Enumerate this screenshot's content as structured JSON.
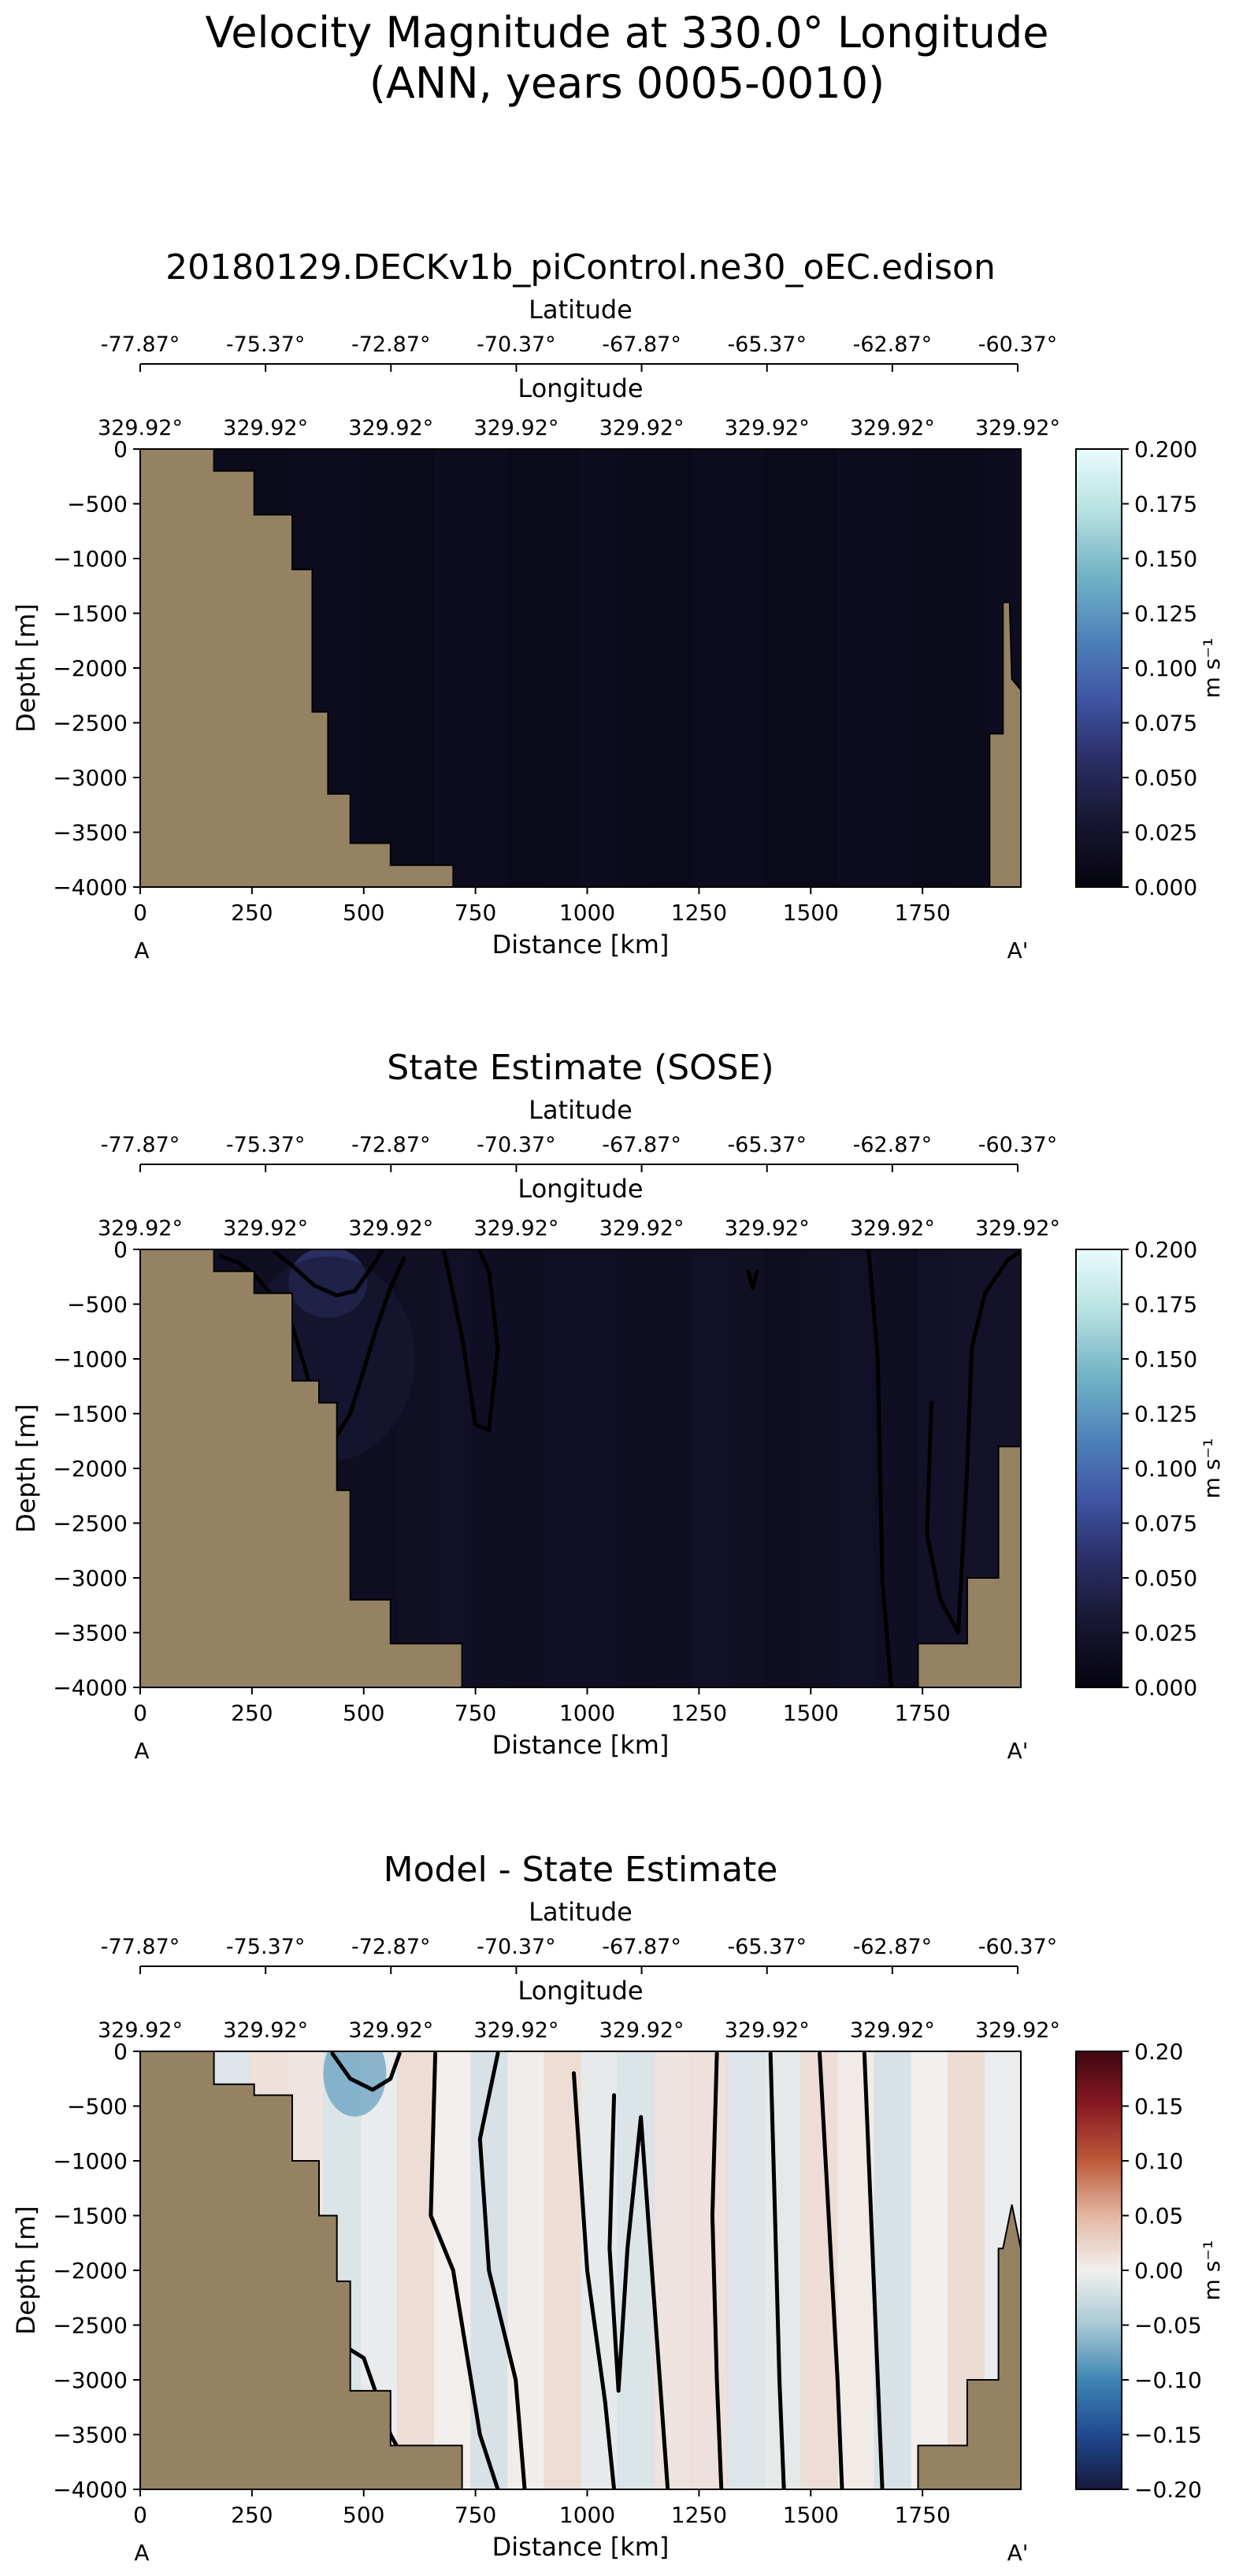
{
  "figure": {
    "title_line1": "Velocity Magnitude at 330.0° Longitude",
    "title_line2": "(ANN, years 0005-0010)"
  },
  "colors": {
    "land": "#948263",
    "magnitude_cmap": [
      "#05040f",
      "#171630",
      "#2a2d63",
      "#3f55a4",
      "#4d84ba",
      "#73b4c6",
      "#b6e0e0",
      "#eafcfd"
    ],
    "diff_cmap": [
      "#17193e",
      "#1f4a91",
      "#3e86b4",
      "#a7c9d4",
      "#f2f0ef",
      "#e3b7a2",
      "#bd5a3a",
      "#8a1a23",
      "#3f0611"
    ]
  },
  "chart_data": [
    {
      "type": "heatmap",
      "title": "20180129.DECKv1b_piControl.ne30_oEC.edison",
      "xlabel": "Distance [km]",
      "ylabel": "Depth [m]",
      "xlim": [
        0,
        1970
      ],
      "ylim": [
        -4000,
        0
      ],
      "x_ticks": [
        0,
        250,
        500,
        750,
        1000,
        1250,
        1500,
        1750
      ],
      "y_ticks": [
        0,
        -500,
        -1000,
        -1500,
        -2000,
        -2500,
        -3000,
        -3500,
        -4000
      ],
      "latitude_label": "Latitude",
      "latitude_ticks": [
        "-77.87°",
        "-75.37°",
        "-72.87°",
        "-70.37°",
        "-67.87°",
        "-65.37°",
        "-62.87°",
        "-60.37°"
      ],
      "longitude_label": "Longitude",
      "longitude_ticks": [
        "329.92°",
        "329.92°",
        "329.92°",
        "329.92°",
        "329.92°",
        "329.92°",
        "329.92°",
        "329.92°"
      ],
      "endpoint_start": "A",
      "endpoint_end": "A'",
      "colorbar": {
        "label": "m s⁻¹",
        "vmin": 0.0,
        "vmax": 0.2,
        "tick_labels": [
          "0.000",
          "0.025",
          "0.050",
          "0.075",
          "0.100",
          "0.125",
          "0.150",
          "0.175",
          "0.200"
        ]
      },
      "ocean_base_value": 0.012,
      "contour_levels": [],
      "contours": [],
      "land_left": [
        [
          0,
          0
        ],
        [
          165,
          0
        ],
        [
          165,
          -200
        ],
        [
          255,
          -200
        ],
        [
          255,
          -600
        ],
        [
          340,
          -600
        ],
        [
          340,
          -1100
        ],
        [
          385,
          -1100
        ],
        [
          385,
          -2400
        ],
        [
          420,
          -2400
        ],
        [
          420,
          -3150
        ],
        [
          470,
          -3150
        ],
        [
          470,
          -3600
        ],
        [
          560,
          -3600
        ],
        [
          560,
          -3800
        ],
        [
          700,
          -3800
        ],
        [
          700,
          -4000
        ],
        [
          0,
          -4000
        ]
      ],
      "land_right": [
        [
          1970,
          -2200
        ],
        [
          1950,
          -2100
        ],
        [
          1945,
          -1400
        ],
        [
          1930,
          -1400
        ],
        [
          1930,
          -2600
        ],
        [
          1900,
          -2600
        ],
        [
          1900,
          -4000
        ],
        [
          1970,
          -4000
        ]
      ]
    },
    {
      "type": "heatmap",
      "title": "State Estimate (SOSE)",
      "xlabel": "Distance [km]",
      "ylabel": "Depth [m]",
      "xlim": [
        0,
        1970
      ],
      "ylim": [
        -4000,
        0
      ],
      "x_ticks": [
        0,
        250,
        500,
        750,
        1000,
        1250,
        1500,
        1750
      ],
      "y_ticks": [
        0,
        -500,
        -1000,
        -1500,
        -2000,
        -2500,
        -3000,
        -3500,
        -4000
      ],
      "latitude_label": "Latitude",
      "latitude_ticks": [
        "-77.87°",
        "-75.37°",
        "-72.87°",
        "-70.37°",
        "-67.87°",
        "-65.37°",
        "-62.87°",
        "-60.37°"
      ],
      "longitude_label": "Longitude",
      "longitude_ticks": [
        "329.92°",
        "329.92°",
        "329.92°",
        "329.92°",
        "329.92°",
        "329.92°",
        "329.92°",
        "329.92°"
      ],
      "endpoint_start": "A",
      "endpoint_end": "A'",
      "colorbar": {
        "label": "m s⁻¹",
        "vmin": 0.0,
        "vmax": 0.2,
        "tick_labels": [
          "0.000",
          "0.025",
          "0.050",
          "0.075",
          "0.100",
          "0.125",
          "0.150",
          "0.175",
          "0.200"
        ]
      },
      "ocean_base_value": 0.018,
      "contour_levels": [
        0.02,
        0.04
      ],
      "contours": [
        [
          [
            180,
            -60
          ],
          [
            220,
            -120
          ],
          [
            260,
            -250
          ],
          [
            300,
            -450
          ],
          [
            340,
            -700
          ],
          [
            370,
            -1100
          ],
          [
            400,
            -1600
          ],
          [
            440,
            -1700
          ],
          [
            470,
            -1500
          ],
          [
            500,
            -1100
          ],
          [
            530,
            -700
          ],
          [
            560,
            -350
          ],
          [
            590,
            -80
          ]
        ],
        [
          [
            300,
            -20
          ],
          [
            340,
            -150
          ],
          [
            390,
            -330
          ],
          [
            440,
            -420
          ],
          [
            480,
            -380
          ],
          [
            520,
            -150
          ],
          [
            540,
            -20
          ]
        ],
        [
          [
            680,
            -20
          ],
          [
            720,
            -800
          ],
          [
            750,
            -1600
          ],
          [
            780,
            -1650
          ],
          [
            800,
            -900
          ],
          [
            780,
            -200
          ],
          [
            760,
            -20
          ]
        ],
        [
          [
            1360,
            -200
          ],
          [
            1370,
            -350
          ],
          [
            1380,
            -200
          ]
        ],
        [
          [
            1630,
            -20
          ],
          [
            1650,
            -1000
          ],
          [
            1660,
            -3000
          ],
          [
            1680,
            -4000
          ]
        ],
        [
          [
            1770,
            -1400
          ],
          [
            1760,
            -2600
          ],
          [
            1790,
            -3200
          ],
          [
            1830,
            -3500
          ],
          [
            1850,
            -2000
          ],
          [
            1860,
            -900
          ],
          [
            1890,
            -400
          ],
          [
            1940,
            -100
          ],
          [
            1968,
            -20
          ]
        ]
      ],
      "land_left": [
        [
          0,
          0
        ],
        [
          165,
          0
        ],
        [
          165,
          -200
        ],
        [
          255,
          -200
        ],
        [
          255,
          -400
        ],
        [
          340,
          -400
        ],
        [
          340,
          -1200
        ],
        [
          400,
          -1200
        ],
        [
          400,
          -1400
        ],
        [
          440,
          -1400
        ],
        [
          440,
          -2200
        ],
        [
          470,
          -2200
        ],
        [
          470,
          -3200
        ],
        [
          560,
          -3200
        ],
        [
          560,
          -3600
        ],
        [
          720,
          -3600
        ],
        [
          720,
          -4000
        ],
        [
          0,
          -4000
        ]
      ],
      "land_right": [
        [
          1970,
          -1800
        ],
        [
          1920,
          -1800
        ],
        [
          1920,
          -3000
        ],
        [
          1850,
          -3000
        ],
        [
          1850,
          -3600
        ],
        [
          1740,
          -3600
        ],
        [
          1740,
          -4000
        ],
        [
          1970,
          -4000
        ]
      ]
    },
    {
      "type": "heatmap",
      "title": "Model - State Estimate",
      "xlabel": "Distance [km]",
      "ylabel": "Depth [m]",
      "xlim": [
        0,
        1970
      ],
      "ylim": [
        -4000,
        0
      ],
      "x_ticks": [
        0,
        250,
        500,
        750,
        1000,
        1250,
        1500,
        1750
      ],
      "y_ticks": [
        0,
        -500,
        -1000,
        -1500,
        -2000,
        -2500,
        -3000,
        -3500,
        -4000
      ],
      "latitude_label": "Latitude",
      "latitude_ticks": [
        "-77.87°",
        "-75.37°",
        "-72.87°",
        "-70.37°",
        "-67.87°",
        "-65.37°",
        "-62.87°",
        "-60.37°"
      ],
      "longitude_label": "Longitude",
      "longitude_ticks": [
        "329.92°",
        "329.92°",
        "329.92°",
        "329.92°",
        "329.92°",
        "329.92°",
        "329.92°",
        "329.92°"
      ],
      "endpoint_start": "A",
      "endpoint_end": "A'",
      "colorbar": {
        "label": "m s⁻¹",
        "vmin": -0.2,
        "vmax": 0.2,
        "tick_labels": [
          "−0.20",
          "−0.15",
          "−0.10",
          "−0.05",
          "0.00",
          "0.05",
          "0.10",
          "0.15",
          "0.20"
        ]
      },
      "ocean_base_value": 0.0,
      "contour_levels": [
        0.0
      ],
      "contours": [
        [
          [
            390,
            -3800
          ],
          [
            420,
            -3200
          ],
          [
            460,
            -2700
          ],
          [
            500,
            -2800
          ],
          [
            560,
            -3500
          ],
          [
            600,
            -3800
          ]
        ],
        [
          [
            430,
            -20
          ],
          [
            470,
            -250
          ],
          [
            520,
            -350
          ],
          [
            560,
            -250
          ],
          [
            580,
            -20
          ]
        ],
        [
          [
            660,
            -20
          ],
          [
            650,
            -1500
          ],
          [
            700,
            -2000
          ],
          [
            760,
            -3500
          ],
          [
            800,
            -4000
          ]
        ],
        [
          [
            800,
            -20
          ],
          [
            760,
            -800
          ],
          [
            780,
            -2000
          ],
          [
            840,
            -3000
          ],
          [
            860,
            -4000
          ]
        ],
        [
          [
            970,
            -200
          ],
          [
            1000,
            -2000
          ],
          [
            1040,
            -3200
          ],
          [
            1060,
            -4000
          ]
        ],
        [
          [
            1060,
            -400
          ],
          [
            1050,
            -1800
          ],
          [
            1070,
            -3100
          ],
          [
            1090,
            -1800
          ],
          [
            1120,
            -600
          ],
          [
            1180,
            -4000
          ]
        ],
        [
          [
            1290,
            -20
          ],
          [
            1280,
            -1500
          ],
          [
            1290,
            -3000
          ],
          [
            1300,
            -4000
          ]
        ],
        [
          [
            1410,
            -20
          ],
          [
            1420,
            -1500
          ],
          [
            1430,
            -3000
          ],
          [
            1440,
            -4000
          ]
        ],
        [
          [
            1520,
            -20
          ],
          [
            1540,
            -1500
          ],
          [
            1560,
            -3000
          ],
          [
            1570,
            -4000
          ]
        ],
        [
          [
            1620,
            -20
          ],
          [
            1640,
            -2000
          ],
          [
            1660,
            -4000
          ]
        ]
      ],
      "land_left": [
        [
          0,
          0
        ],
        [
          165,
          0
        ],
        [
          165,
          -300
        ],
        [
          255,
          -300
        ],
        [
          255,
          -400
        ],
        [
          340,
          -400
        ],
        [
          340,
          -1000
        ],
        [
          400,
          -1000
        ],
        [
          400,
          -1500
        ],
        [
          440,
          -1500
        ],
        [
          440,
          -2100
        ],
        [
          470,
          -2100
        ],
        [
          470,
          -3100
        ],
        [
          560,
          -3100
        ],
        [
          560,
          -3600
        ],
        [
          720,
          -3600
        ],
        [
          720,
          -4000
        ],
        [
          0,
          -4000
        ]
      ],
      "land_right": [
        [
          1970,
          -1800
        ],
        [
          1950,
          -1400
        ],
        [
          1940,
          -1600
        ],
        [
          1930,
          -1800
        ],
        [
          1920,
          -1800
        ],
        [
          1920,
          -3000
        ],
        [
          1850,
          -3000
        ],
        [
          1850,
          -3600
        ],
        [
          1740,
          -3600
        ],
        [
          1740,
          -4000
        ],
        [
          1970,
          -4000
        ]
      ]
    }
  ]
}
